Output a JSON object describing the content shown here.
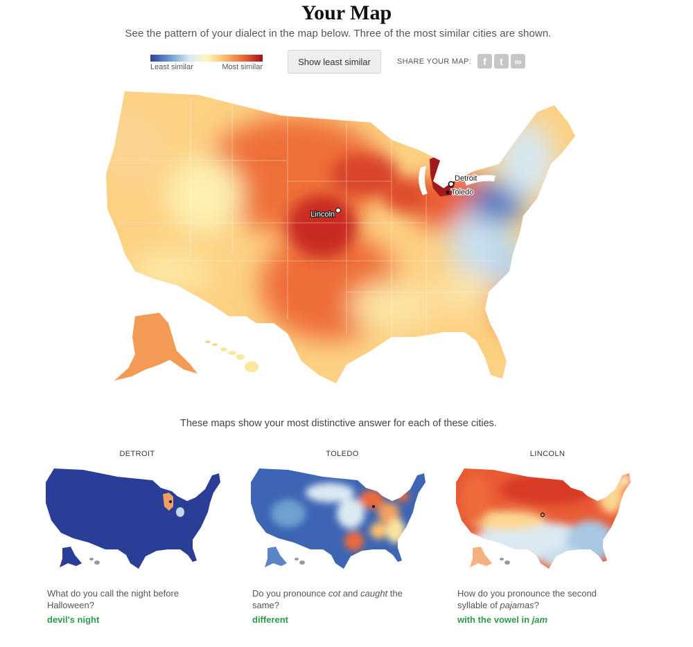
{
  "header": {
    "title": "Your Map",
    "subtitle": "See the pattern of your dialect in the map below. Three of the most similar cities are shown."
  },
  "legend": {
    "least_label": "Least similar",
    "most_label": "Most similar"
  },
  "toolbar": {
    "show_least_label": "Show least similar",
    "share_label": "SHARE YOUR MAP:",
    "share_facebook": "f",
    "share_twitter": "t",
    "share_link": "∞"
  },
  "map": {
    "cities": [
      {
        "name": "Detroit"
      },
      {
        "name": "Toledo"
      },
      {
        "name": "Lincoln"
      }
    ]
  },
  "caption": "These maps show your most distinctive answer for each of these cities.",
  "city_maps": [
    {
      "city": "DETROIT",
      "question_parts": [
        "What do you call the night before Halloween?"
      ],
      "answer_parts": [
        "devil's night"
      ]
    },
    {
      "city": "TOLEDO",
      "question_parts": [
        "Do you pronounce ",
        "cot",
        " and ",
        "caught",
        " the same?"
      ],
      "answer_parts": [
        "different"
      ]
    },
    {
      "city": "LINCOLN",
      "question_parts": [
        "How do you pronounce the second syllable of ",
        "pajamas",
        "?"
      ],
      "answer_parts": [
        "with the vowel in ",
        "jam"
      ]
    }
  ],
  "colors": {
    "scale": [
      "#2c3f99",
      "#6f9fd0",
      "#dbe9f3",
      "#fff6c3",
      "#fbc06d",
      "#ee6b3b",
      "#a50d1c"
    ],
    "answer_green": "#2e9a4b"
  }
}
